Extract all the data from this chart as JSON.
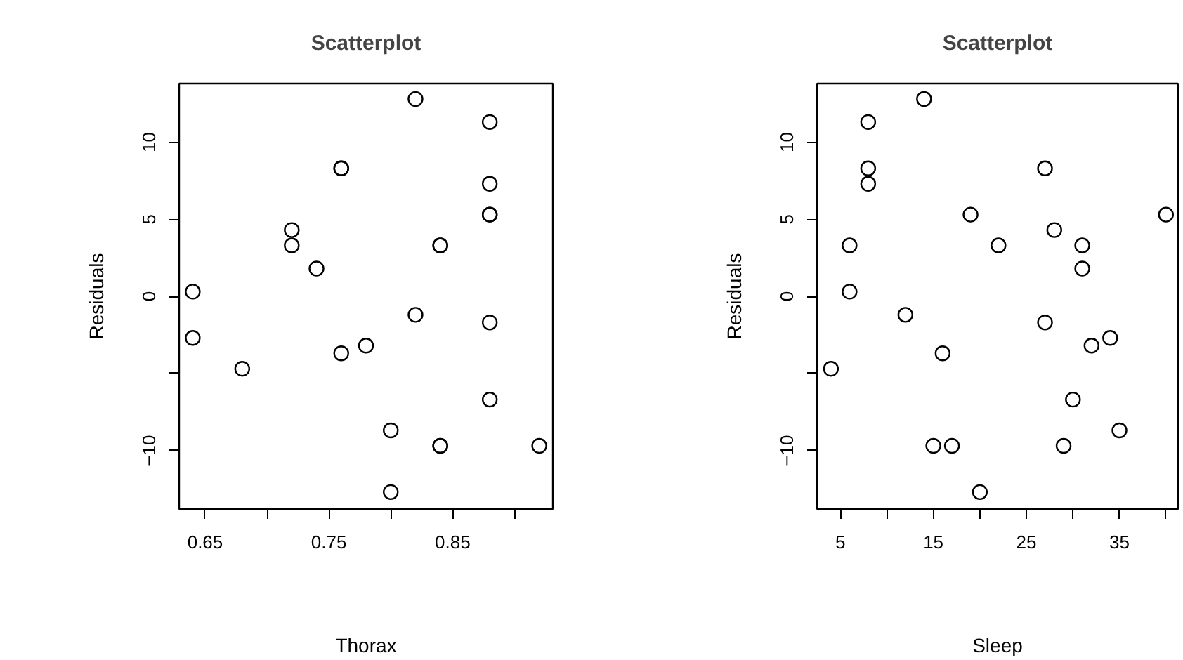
{
  "chart_data": [
    {
      "type": "scatter",
      "title": "Scatterplot",
      "xlabel": "Thorax",
      "ylabel": "Residuals",
      "marker": "circle",
      "grid": false,
      "xlim": [
        0.629,
        0.931
      ],
      "ylim": [
        -13.8,
        13.8
      ],
      "xticks": [
        0.65,
        {
          "value": 0.7,
          "label": null
        },
        0.75,
        {
          "value": 0.8,
          "label": null
        },
        0.85,
        {
          "value": 0.9,
          "label": null
        }
      ],
      "yticks": [
        -10,
        {
          "value": -5,
          "label": null
        },
        0,
        5,
        10
      ],
      "series": [
        {
          "color": "#000000",
          "x": [
            0.82,
            0.88,
            0.76,
            0.76,
            0.88,
            0.88,
            0.88,
            0.72,
            0.72,
            0.84,
            0.84,
            0.74,
            0.64,
            0.82,
            0.88,
            0.64,
            0.78,
            0.76,
            0.68,
            0.88,
            0.8,
            0.84,
            0.84,
            0.92,
            0.8
          ],
          "values": [
            12.8,
            11.3,
            8.3,
            8.3,
            7.3,
            5.3,
            5.3,
            4.3,
            3.3,
            3.3,
            3.3,
            1.8,
            0.3,
            -1.2,
            -1.7,
            -2.7,
            -3.2,
            -3.7,
            -4.7,
            -6.7,
            -8.7,
            -9.7,
            -9.7,
            -9.7,
            -12.7
          ]
        }
      ]
    },
    {
      "type": "scatter",
      "title": "Scatterplot",
      "xlabel": "Sleep",
      "ylabel": "Residuals",
      "marker": "circle",
      "grid": false,
      "xlim": [
        2.5,
        41.3
      ],
      "ylim": [
        -13.8,
        13.8
      ],
      "xticks": [
        5,
        {
          "value": 10,
          "label": null
        },
        15,
        {
          "value": 20,
          "label": null
        },
        25,
        {
          "value": 30,
          "label": null
        },
        35,
        {
          "value": 40,
          "label": null
        }
      ],
      "yticks": [
        -10,
        {
          "value": -5,
          "label": null
        },
        0,
        5,
        10
      ],
      "series": [
        {
          "color": "#000000",
          "x": [
            4,
            6,
            6,
            8,
            8,
            8,
            12,
            14,
            15,
            16,
            17,
            19,
            20,
            22,
            27,
            27,
            28,
            29,
            30,
            31,
            31,
            32,
            34,
            35,
            40
          ],
          "values": [
            -4.7,
            3.3,
            0.3,
            11.3,
            8.3,
            7.3,
            -1.2,
            12.8,
            -9.7,
            -3.7,
            -9.7,
            5.3,
            -12.7,
            3.3,
            8.3,
            -1.7,
            4.3,
            -9.7,
            -6.7,
            3.3,
            1.8,
            -3.2,
            -2.7,
            -8.7,
            5.3
          ]
        }
      ]
    }
  ]
}
